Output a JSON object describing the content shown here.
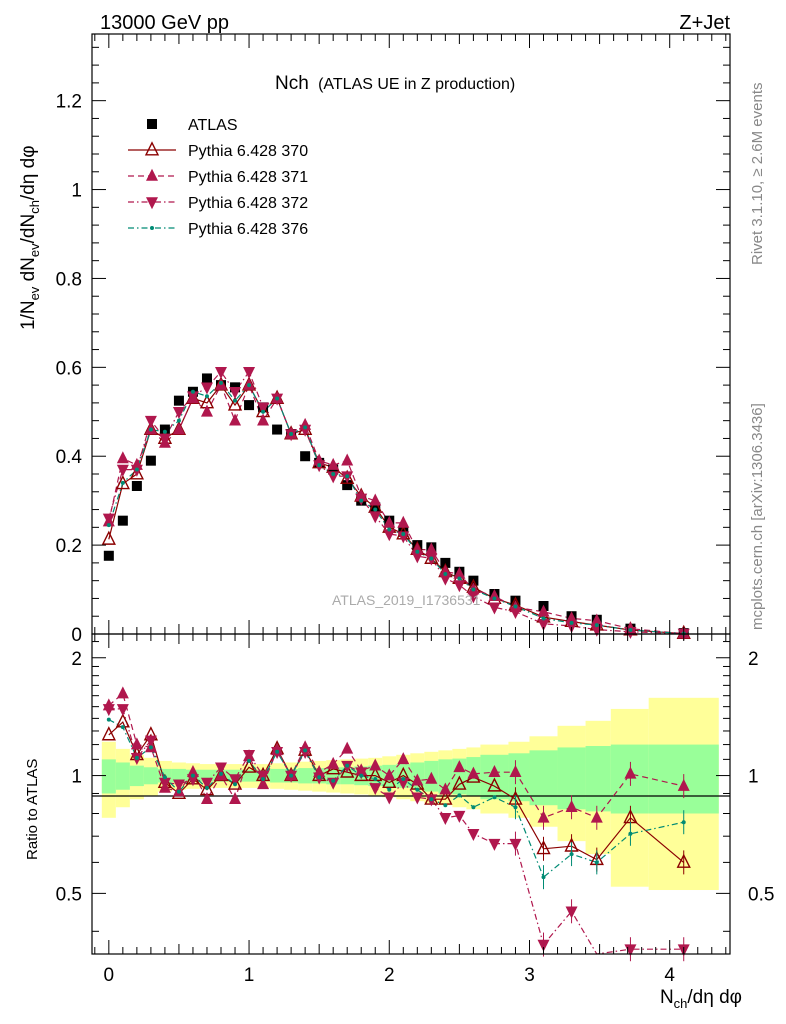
{
  "header": {
    "beam": "13000 GeV pp",
    "process": "Z+Jet",
    "title_main": "Nch",
    "title_sub": "(ATLAS UE in Z production)"
  },
  "side": {
    "rivet": "Rivet 3.1.10, ≥ 2.6M events",
    "mcplots": "mcplots.cern.ch [arXiv:1306.3436]"
  },
  "analysis_label": "ATLAS_2019_I1736531",
  "chart_data": [
    {
      "type": "scatter",
      "panel": "main",
      "title": "Nch (ATLAS UE in Z production)",
      "xlabel": "N_ch/dη dφ",
      "ylabel": "1/N_ev dN_ev/dN_ch/dη dφ",
      "xlim": [
        -0.12,
        4.43
      ],
      "ylim": [
        0,
        1.35
      ],
      "xticks": [
        0,
        1,
        2,
        3,
        4
      ],
      "yticks": [
        0,
        0.2,
        0.4,
        0.6,
        0.8,
        1,
        1.2
      ],
      "ytick_labels": [
        "0",
        "0.2",
        "0.4",
        "0.6",
        "0.8",
        "1",
        "1.2"
      ],
      "legend_position": "top-left",
      "x": [
        0.0,
        0.1,
        0.2,
        0.3,
        0.4,
        0.5,
        0.6,
        0.7,
        0.8,
        0.9,
        1.0,
        1.1,
        1.2,
        1.3,
        1.4,
        1.5,
        1.6,
        1.7,
        1.8,
        1.9,
        2.0,
        2.1,
        2.2,
        2.3,
        2.4,
        2.5,
        2.6,
        2.75,
        2.9,
        3.1,
        3.3,
        3.48,
        3.72,
        4.1
      ],
      "series": [
        {
          "name": "ATLAS",
          "color": "#000000",
          "marker": "square",
          "line": "none",
          "values": [
            0.176,
            0.255,
            0.333,
            0.39,
            0.46,
            0.525,
            0.545,
            0.575,
            0.56,
            0.555,
            0.515,
            0.51,
            0.46,
            0.45,
            0.4,
            0.385,
            0.37,
            0.335,
            0.3,
            0.285,
            0.255,
            0.23,
            0.2,
            0.195,
            0.16,
            0.14,
            0.12,
            0.09,
            0.075,
            0.063,
            0.04,
            0.032,
            0.012,
            0.002
          ]
        },
        {
          "name": "Pythia 6.428 370",
          "color": "#8b0000",
          "marker": "triangle-up-open",
          "line": "solid",
          "values": [
            0.213,
            0.338,
            0.36,
            0.46,
            0.44,
            0.46,
            0.53,
            0.52,
            0.56,
            0.515,
            0.56,
            0.5,
            0.53,
            0.45,
            0.46,
            0.385,
            0.375,
            0.35,
            0.31,
            0.285,
            0.24,
            0.225,
            0.19,
            0.17,
            0.14,
            0.125,
            0.105,
            0.08,
            0.065,
            0.038,
            0.028,
            0.02,
            0.009,
            0.001
          ]
        },
        {
          "name": "Pythia 6.428 371",
          "color": "#b0174d",
          "marker": "triangle-up",
          "line": "dashed",
          "values": [
            0.253,
            0.395,
            0.38,
            0.46,
            0.43,
            0.46,
            0.53,
            0.5,
            0.56,
            0.48,
            0.56,
            0.48,
            0.53,
            0.45,
            0.47,
            0.39,
            0.38,
            0.39,
            0.31,
            0.3,
            0.25,
            0.25,
            0.19,
            0.19,
            0.14,
            0.135,
            0.1,
            0.085,
            0.06,
            0.05,
            0.035,
            0.03,
            0.012,
            0.001
          ]
        },
        {
          "name": "Pythia 6.428 372",
          "color": "#b0174d",
          "marker": "triangle-down",
          "line": "dashdot",
          "values": [
            0.26,
            0.37,
            0.37,
            0.48,
            0.44,
            0.5,
            0.535,
            0.555,
            0.59,
            0.545,
            0.59,
            0.51,
            0.53,
            0.45,
            0.46,
            0.38,
            0.355,
            0.355,
            0.305,
            0.265,
            0.225,
            0.22,
            0.175,
            0.17,
            0.125,
            0.11,
            0.085,
            0.06,
            0.05,
            0.023,
            0.018,
            0.01,
            0.005,
            0.001
          ]
        },
        {
          "name": "Pythia 6.428 376",
          "color": "#008b74",
          "marker": "dot",
          "line": "dashdot",
          "values": [
            0.245,
            0.34,
            0.37,
            0.46,
            0.455,
            0.48,
            0.545,
            0.535,
            0.565,
            0.525,
            0.56,
            0.5,
            0.53,
            0.45,
            0.465,
            0.38,
            0.36,
            0.355,
            0.3,
            0.28,
            0.235,
            0.225,
            0.185,
            0.17,
            0.135,
            0.125,
            0.1,
            0.08,
            0.062,
            0.035,
            0.025,
            0.02,
            0.009,
            0.001
          ]
        }
      ]
    },
    {
      "type": "scatter",
      "panel": "ratio",
      "ylabel": "Ratio to ATLAS",
      "xlabel": "N_ch/dη dφ",
      "xlim": [
        -0.12,
        4.43
      ],
      "ylim": [
        0.35,
        2.3
      ],
      "yticks": [
        0.5,
        1,
        2
      ],
      "ytick_labels": [
        "0.5",
        "1",
        "2"
      ],
      "reference": 1,
      "band_edges": [
        -0.05,
        0.05,
        0.15,
        0.25,
        0.35,
        0.45,
        0.55,
        0.65,
        0.75,
        0.85,
        0.95,
        1.05,
        1.15,
        1.25,
        1.35,
        1.45,
        1.55,
        1.65,
        1.75,
        1.85,
        1.95,
        2.05,
        2.15,
        2.25,
        2.35,
        2.45,
        2.55,
        2.65,
        2.85,
        3.0,
        3.2,
        3.4,
        3.58,
        3.85,
        4.35
      ],
      "band_stat_lo": [
        0.9,
        0.92,
        0.94,
        0.95,
        0.96,
        0.96,
        0.965,
        0.965,
        0.965,
        0.965,
        0.965,
        0.965,
        0.96,
        0.96,
        0.955,
        0.955,
        0.95,
        0.95,
        0.945,
        0.94,
        0.935,
        0.93,
        0.92,
        0.91,
        0.9,
        0.895,
        0.885,
        0.87,
        0.86,
        0.84,
        0.82,
        0.81,
        0.8,
        0.8
      ],
      "band_stat_hi": [
        1.1,
        1.08,
        1.06,
        1.05,
        1.04,
        1.04,
        1.035,
        1.035,
        1.035,
        1.035,
        1.035,
        1.035,
        1.04,
        1.04,
        1.045,
        1.045,
        1.05,
        1.05,
        1.055,
        1.06,
        1.065,
        1.07,
        1.08,
        1.09,
        1.1,
        1.105,
        1.115,
        1.13,
        1.14,
        1.16,
        1.18,
        1.19,
        1.2,
        1.2
      ],
      "band_total_lo": [
        0.78,
        0.83,
        0.87,
        0.89,
        0.91,
        0.92,
        0.925,
        0.93,
        0.93,
        0.93,
        0.93,
        0.93,
        0.925,
        0.92,
        0.915,
        0.91,
        0.905,
        0.9,
        0.895,
        0.89,
        0.88,
        0.87,
        0.86,
        0.85,
        0.84,
        0.83,
        0.82,
        0.8,
        0.78,
        0.74,
        0.68,
        0.63,
        0.52,
        0.51
      ],
      "band_total_hi": [
        1.22,
        1.17,
        1.13,
        1.11,
        1.09,
        1.08,
        1.075,
        1.07,
        1.07,
        1.07,
        1.07,
        1.07,
        1.075,
        1.08,
        1.085,
        1.09,
        1.095,
        1.1,
        1.105,
        1.11,
        1.12,
        1.13,
        1.14,
        1.15,
        1.16,
        1.17,
        1.18,
        1.2,
        1.22,
        1.26,
        1.34,
        1.38,
        1.48,
        1.58
      ],
      "x": [
        0.0,
        0.1,
        0.2,
        0.3,
        0.4,
        0.5,
        0.6,
        0.7,
        0.8,
        0.9,
        1.0,
        1.1,
        1.2,
        1.3,
        1.4,
        1.5,
        1.6,
        1.7,
        1.8,
        1.9,
        2.0,
        2.1,
        2.2,
        2.3,
        2.4,
        2.5,
        2.6,
        2.75,
        2.9,
        3.1,
        3.3,
        3.48,
        3.72,
        4.1
      ],
      "series": [
        {
          "name": "Pythia 6.428 370",
          "color": "#8b0000",
          "marker": "triangle-up-open",
          "line": "solid",
          "values": [
            1.27,
            1.37,
            1.13,
            1.27,
            0.96,
            0.9,
            0.98,
            0.92,
            1.0,
            0.95,
            1.05,
            1.0,
            1.17,
            1.0,
            1.16,
            1.0,
            1.04,
            1.02,
            1.0,
            1.0,
            0.96,
            1.0,
            0.95,
            0.87,
            0.87,
            0.95,
            0.99,
            0.94,
            0.87,
            0.65,
            0.66,
            0.61,
            0.78,
            0.6
          ]
        },
        {
          "name": "Pythia 6.428 371",
          "color": "#b0174d",
          "marker": "triangle-up",
          "line": "dashed",
          "values": [
            1.51,
            1.62,
            1.2,
            1.18,
            0.93,
            0.91,
            1.02,
            0.87,
            1.0,
            0.87,
            1.12,
            0.95,
            1.16,
            1.0,
            1.18,
            1.02,
            1.07,
            1.17,
            1.03,
            1.06,
            1.0,
            1.1,
            0.97,
            0.98,
            0.92,
            1.05,
            1.01,
            1.02,
            1.02,
            0.78,
            0.83,
            0.78,
            1.01,
            0.94
          ]
        },
        {
          "name": "Pythia 6.428 372",
          "color": "#b0174d",
          "marker": "triangle-down",
          "line": "dashdot",
          "values": [
            1.48,
            1.48,
            1.11,
            1.23,
            0.96,
            0.95,
            0.98,
            0.96,
            1.05,
            0.98,
            1.13,
            1.0,
            1.15,
            1.0,
            1.15,
            0.99,
            0.96,
            1.06,
            1.02,
            0.93,
            0.88,
            0.96,
            0.88,
            0.87,
            0.78,
            0.79,
            0.71,
            0.67,
            0.67,
            0.37,
            0.45,
            0.31,
            0.36,
            0.36
          ]
        },
        {
          "name": "Pythia 6.428 376",
          "color": "#008b74",
          "marker": "dot",
          "line": "dashdot",
          "values": [
            1.39,
            1.33,
            1.11,
            1.18,
            0.99,
            0.91,
            1.0,
            0.93,
            1.01,
            0.95,
            1.09,
            0.98,
            1.15,
            1.0,
            1.16,
            0.99,
            0.97,
            1.06,
            1.0,
            0.98,
            0.92,
            0.98,
            0.92,
            0.87,
            0.84,
            0.89,
            0.83,
            0.88,
            0.83,
            0.55,
            0.63,
            0.6,
            0.71,
            0.76
          ]
        }
      ]
    }
  ]
}
